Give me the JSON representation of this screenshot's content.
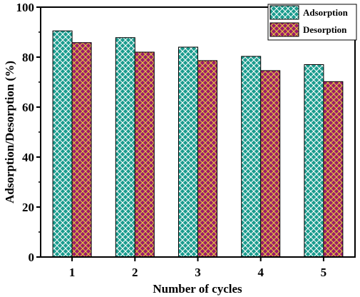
{
  "chart_data": {
    "type": "bar",
    "title": "",
    "xlabel": "Number of cycles",
    "ylabel": "Adsorption/Desorption (%)",
    "categories": [
      "1",
      "2",
      "3",
      "4",
      "5"
    ],
    "ylim": [
      0,
      100
    ],
    "yticks": [
      "0",
      "20",
      "40",
      "60",
      "80",
      "100"
    ],
    "grid": false,
    "legend_position": "top-right",
    "series": [
      {
        "name": "Adsorption",
        "values": [
          90.5,
          87.8,
          84.0,
          80.3,
          77.0
        ],
        "color": "#1a9c8e",
        "hatch_color": "#ffffff"
      },
      {
        "name": "Desorption",
        "values": [
          85.8,
          82.0,
          78.6,
          74.6,
          70.2
        ],
        "color": "#9c1a6c",
        "hatch_color": "#e8d23a"
      }
    ]
  }
}
